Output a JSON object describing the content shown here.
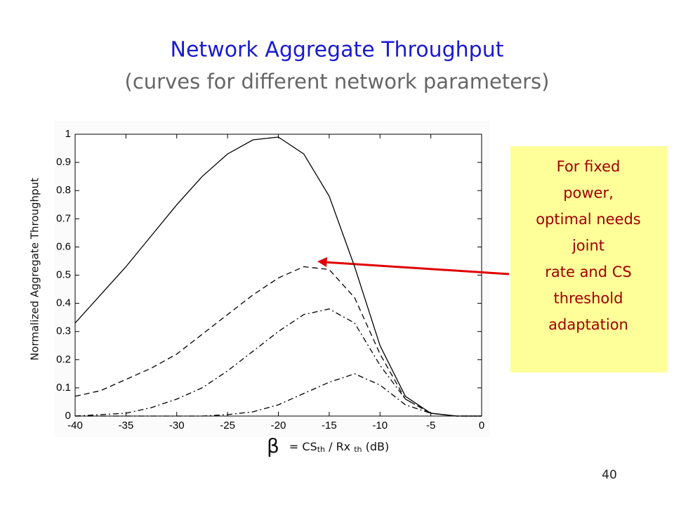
{
  "chart_data": {
    "type": "line",
    "title": "Network Aggregate Throughput",
    "subtitle": "(curves for different network parameters)",
    "ylabel": "Normalized Aggregate Throughput",
    "xlabel_parts": [
      "β",
      "= CS",
      "th",
      " / Rx ",
      "th",
      " (dB)"
    ],
    "x": [
      -40,
      -37.5,
      -35,
      -32.5,
      -30,
      -27.5,
      -25,
      -22.5,
      -20,
      -17.5,
      -15,
      -12.5,
      -10,
      -7.5,
      -5,
      -2.5,
      0
    ],
    "series": [
      {
        "color": "#000000",
        "style": "solid",
        "values": [
          0.33,
          0.43,
          0.53,
          0.64,
          0.75,
          0.85,
          0.93,
          0.98,
          0.99,
          0.93,
          0.78,
          0.53,
          0.25,
          0.07,
          0.01,
          0,
          0
        ]
      },
      {
        "color": "#000000",
        "style": "dashed",
        "values": [
          0.07,
          0.09,
          0.13,
          0.17,
          0.22,
          0.29,
          0.36,
          0.43,
          0.49,
          0.53,
          0.52,
          0.42,
          0.22,
          0.06,
          0.01,
          0,
          0
        ]
      },
      {
        "color": "#000000",
        "style": "dashdot",
        "values": [
          0,
          0.005,
          0.01,
          0.03,
          0.06,
          0.1,
          0.16,
          0.23,
          0.3,
          0.36,
          0.38,
          0.33,
          0.18,
          0.06,
          0.01,
          0,
          0
        ]
      },
      {
        "color": "#000000",
        "style": "dashdot",
        "values": [
          0,
          0,
          0,
          0,
          0,
          0,
          0.005,
          0.015,
          0.04,
          0.08,
          0.12,
          0.15,
          0.11,
          0.04,
          0.01,
          0,
          0
        ]
      }
    ],
    "xlim": [
      -40,
      0
    ],
    "xticks": [
      -40,
      -35,
      -30,
      -25,
      -20,
      -15,
      -10,
      -5,
      0
    ],
    "ylim": [
      0,
      1
    ],
    "yticks": [
      0,
      0.1,
      0.2,
      0.3,
      0.4,
      0.5,
      0.6,
      0.7,
      0.8,
      0.9,
      1
    ],
    "grid": false,
    "annotation": [
      "For fixed",
      "power,",
      "optimal needs",
      "joint",
      "rate and CS",
      "threshold",
      "adaptation"
    ],
    "page_number": "40"
  }
}
